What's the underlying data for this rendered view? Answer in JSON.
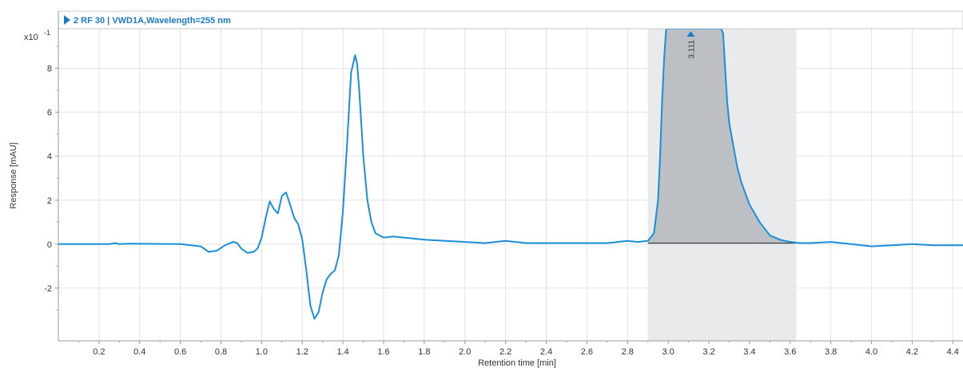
{
  "chart_data": {
    "type": "line",
    "title": "2 RF 30 | VWD1A,Wavelength=255 nm",
    "xlabel": "Retention time [min]",
    "ylabel": "Response [mAU]",
    "y_scale_label": "x10",
    "y_scale_exponent": "-1",
    "xlim": [
      0.0,
      4.45
    ],
    "ylim": [
      -4.4,
      9.8
    ],
    "x_ticks": [
      "0.2",
      "0.4",
      "0.6",
      "0.8",
      "1.0",
      "1.2",
      "1.4",
      "1.6",
      "1.8",
      "2.0",
      "2.2",
      "2.4",
      "2.6",
      "2.8",
      "3.0",
      "3.2",
      "3.4",
      "3.6",
      "3.8",
      "4.0",
      "4.2",
      "4.4"
    ],
    "y_ticks": [
      "-2",
      "0",
      "2",
      "4",
      "6",
      "8"
    ],
    "grid": true,
    "integration_window": [
      2.9,
      3.63
    ],
    "peaks": [
      {
        "label": "3.111",
        "x": 3.111
      }
    ],
    "series": [
      {
        "color": "#1a8fd8",
        "x": [
          0.0,
          0.25,
          0.28,
          0.3,
          0.35,
          0.6,
          0.7,
          0.74,
          0.78,
          0.82,
          0.86,
          0.88,
          0.9,
          0.93,
          0.96,
          0.98,
          1.0,
          1.02,
          1.04,
          1.06,
          1.08,
          1.1,
          1.12,
          1.14,
          1.16,
          1.18,
          1.2,
          1.22,
          1.24,
          1.26,
          1.28,
          1.3,
          1.32,
          1.34,
          1.36,
          1.38,
          1.4,
          1.42,
          1.44,
          1.46,
          1.47,
          1.48,
          1.5,
          1.52,
          1.54,
          1.56,
          1.6,
          1.65,
          1.7,
          1.8,
          2.0,
          2.1,
          2.2,
          2.3,
          2.5,
          2.7,
          2.8,
          2.85,
          2.9,
          2.93,
          2.95,
          2.96,
          2.97,
          2.98,
          2.99,
          3.0,
          3.05,
          3.1,
          3.15,
          3.2,
          3.25,
          3.26,
          3.27,
          3.28,
          3.29,
          3.3,
          3.32,
          3.34,
          3.36,
          3.4,
          3.45,
          3.5,
          3.55,
          3.6,
          3.65,
          3.7,
          3.8,
          3.9,
          4.0,
          4.1,
          4.2,
          4.3,
          4.45
        ],
        "y": [
          0,
          0,
          0.05,
          0,
          0.02,
          0,
          -0.1,
          -0.35,
          -0.3,
          -0.05,
          0.1,
          0.05,
          -0.2,
          -0.4,
          -0.35,
          -0.2,
          0.3,
          1.2,
          1.95,
          1.6,
          1.4,
          2.2,
          2.35,
          1.8,
          1.2,
          0.9,
          0.2,
          -1.2,
          -2.8,
          -3.4,
          -3.1,
          -2.2,
          -1.6,
          -1.35,
          -1.2,
          -0.5,
          1.5,
          4.5,
          7.8,
          8.6,
          8.2,
          7.0,
          4.0,
          2.0,
          1.0,
          0.5,
          0.3,
          0.35,
          0.3,
          0.2,
          0.1,
          0.05,
          0.15,
          0.05,
          0.05,
          0.05,
          0.15,
          0.1,
          0.15,
          0.5,
          2.0,
          4.0,
          6.5,
          8.5,
          9.8,
          9.8,
          9.8,
          9.8,
          9.8,
          9.8,
          9.8,
          9.8,
          9.6,
          8.0,
          6.5,
          5.5,
          4.5,
          3.5,
          2.8,
          1.8,
          1.0,
          0.4,
          0.2,
          0.1,
          0.05,
          0.05,
          0.1,
          0,
          -0.1,
          -0.05,
          0,
          -0.05,
          -0.05
        ]
      }
    ]
  }
}
